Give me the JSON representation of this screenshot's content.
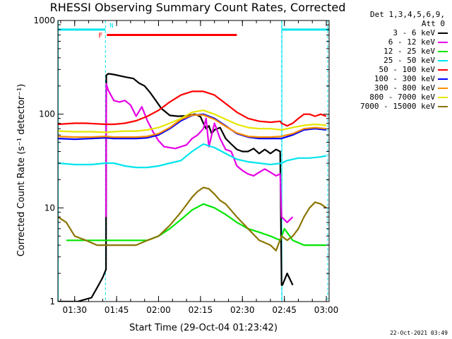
{
  "chart_data": {
    "type": "line",
    "title": "RHESSI Observing Summary Count Rates, Corrected",
    "xlabel": "Start Time (29-Oct-04 01:23:42)",
    "ylabel": "Corrected Count Rate (s⁻¹ detector⁻¹)",
    "x_unit": "minutes from 01:23:42",
    "xlim": [
      0,
      97
    ],
    "ylim": [
      1,
      1000
    ],
    "yscale": "log",
    "x_ticks": [
      {
        "x": 6,
        "label": "01:30"
      },
      {
        "x": 21,
        "label": "01:45"
      },
      {
        "x": 36,
        "label": "02:00"
      },
      {
        "x": 51,
        "label": "02:15"
      },
      {
        "x": 66,
        "label": "02:30"
      },
      {
        "x": 81,
        "label": "02:45"
      },
      {
        "x": 96,
        "label": "03:00"
      }
    ],
    "y_ticks": [
      {
        "y": 1,
        "label": "1"
      },
      {
        "y": 10,
        "label": "10"
      },
      {
        "y": 100,
        "label": "100"
      },
      {
        "y": 1000,
        "label": "1000"
      }
    ],
    "legend_header": [
      "Det 1,3,4,5,6,9,",
      "Att 0"
    ],
    "legend_position": "right",
    "annotations": [
      {
        "text": "F",
        "color": "#ff0000"
      },
      {
        "text": "N",
        "color": "#00e5ee"
      }
    ],
    "night_intervals": [
      [
        0,
        17
      ],
      [
        80,
        97
      ]
    ],
    "flare_interval": [
      17.5,
      64
    ],
    "night_bar_level": 800,
    "flare_bar_level": 700,
    "night_boundaries": [
      17,
      80,
      96.5
    ],
    "timestamp": "22-Oct-2021 03:49",
    "series": [
      {
        "name": "3 - 6 keV",
        "color": "#000000",
        "x": [
          0,
          7,
          12,
          14,
          16,
          17.2,
          17.3,
          18,
          20,
          24,
          27,
          29,
          31,
          33,
          35,
          37,
          40,
          43,
          46,
          49,
          51,
          52,
          53,
          54,
          55,
          56,
          58,
          60,
          62,
          64,
          66,
          68,
          70,
          72,
          74,
          76,
          78,
          79.5,
          80,
          80.3,
          82,
          84
        ],
        "y": [
          1,
          1,
          1.1,
          1.4,
          1.8,
          2.2,
          260,
          270,
          265,
          250,
          240,
          215,
          200,
          170,
          140,
          115,
          97,
          95,
          96,
          100,
          94,
          80,
          70,
          75,
          62,
          68,
          72,
          55,
          48,
          42,
          40,
          40,
          43,
          38,
          42,
          38,
          42,
          40,
          1.5,
          1.5,
          2,
          1.5
        ]
      },
      {
        "name": "6 - 12 keV",
        "color": "#e600e6",
        "x": [
          17.2,
          17.3,
          18,
          20,
          22,
          24,
          26,
          28,
          30,
          32,
          34,
          36,
          38,
          40,
          42,
          44,
          46,
          48,
          50,
          52,
          53,
          54,
          56,
          58,
          60,
          62,
          64,
          66,
          68,
          70,
          72,
          74,
          76,
          78,
          79.5,
          80,
          82,
          84
        ],
        "y": [
          8,
          210,
          180,
          140,
          135,
          140,
          125,
          95,
          120,
          85,
          65,
          52,
          45,
          44,
          43,
          45,
          47,
          55,
          60,
          70,
          90,
          45,
          80,
          55,
          42,
          40,
          28,
          25,
          23,
          22,
          24,
          26,
          24,
          22,
          23,
          8,
          7,
          8
        ]
      },
      {
        "name": "12 - 25 keV",
        "color": "#00e600",
        "x": [
          3,
          10,
          17,
          20,
          24,
          28,
          32,
          36,
          40,
          44,
          48,
          52,
          56,
          60,
          64,
          68,
          72,
          76,
          79.5,
          81,
          84,
          88,
          92,
          96
        ],
        "y": [
          4.5,
          4.5,
          4.5,
          4.5,
          4.5,
          4.5,
          4.5,
          5,
          6,
          7.5,
          9.5,
          11,
          10,
          8.5,
          7,
          6,
          5.5,
          5,
          4.5,
          6,
          4.5,
          4,
          4,
          4
        ]
      },
      {
        "name": "25 - 50 keV",
        "color": "#00e5ee",
        "x": [
          0,
          6,
          12,
          17,
          20,
          24,
          28,
          32,
          36,
          40,
          44,
          48,
          52,
          56,
          60,
          64,
          68,
          72,
          76,
          80,
          82,
          86,
          90,
          94,
          96
        ],
        "y": [
          30,
          29,
          29,
          30,
          30,
          28,
          27,
          27,
          28,
          30,
          32,
          40,
          48,
          44,
          38,
          33,
          31,
          30,
          29,
          30,
          32,
          34,
          34,
          35,
          36
        ]
      },
      {
        "name": "50 - 100 keV",
        "color": "#ff0000",
        "x": [
          0,
          6,
          10,
          17,
          20,
          24,
          28,
          32,
          36,
          40,
          44,
          48,
          52,
          56,
          60,
          64,
          68,
          72,
          76,
          79.5,
          80,
          82,
          84,
          86,
          88,
          90,
          92,
          94,
          96
        ],
        "y": [
          78,
          80,
          80,
          78,
          78,
          80,
          85,
          95,
          110,
          135,
          160,
          175,
          175,
          160,
          130,
          105,
          90,
          84,
          82,
          84,
          80,
          75,
          80,
          90,
          100,
          100,
          95,
          100,
          95
        ]
      },
      {
        "name": "100 - 300 keV",
        "color": "#0000ff",
        "x": [
          0,
          6,
          12,
          17,
          20,
          24,
          28,
          32,
          36,
          40,
          44,
          48,
          52,
          56,
          60,
          64,
          68,
          72,
          76,
          80,
          84,
          88,
          92,
          96
        ],
        "y": [
          55,
          54,
          55,
          56,
          55,
          55,
          55,
          56,
          60,
          70,
          85,
          97,
          100,
          90,
          75,
          62,
          57,
          55,
          55,
          55,
          60,
          68,
          70,
          68
        ]
      },
      {
        "name": "300 - 800 keV",
        "color": "#ff8c00",
        "x": [
          0,
          6,
          12,
          17,
          20,
          24,
          28,
          32,
          36,
          40,
          44,
          48,
          52,
          56,
          60,
          64,
          68,
          72,
          76,
          80,
          84,
          88,
          92,
          96
        ],
        "y": [
          58,
          57,
          57,
          58,
          57,
          57,
          57,
          58,
          62,
          72,
          88,
          98,
          98,
          88,
          74,
          63,
          58,
          57,
          57,
          58,
          62,
          70,
          72,
          70
        ]
      },
      {
        "name": "800 - 7000 keV",
        "color": "#e6e600",
        "x": [
          0,
          6,
          12,
          17,
          20,
          24,
          28,
          32,
          36,
          40,
          44,
          48,
          52,
          56,
          60,
          64,
          68,
          72,
          76,
          80,
          84,
          88,
          92,
          96
        ],
        "y": [
          66,
          65,
          65,
          64,
          65,
          66,
          66,
          68,
          72,
          80,
          90,
          105,
          110,
          100,
          88,
          78,
          72,
          70,
          70,
          68,
          72,
          76,
          78,
          76
        ]
      },
      {
        "name": "7000 - 15000 keV",
        "color": "#8b7500",
        "x": [
          0,
          3,
          6,
          10,
          14,
          17,
          20,
          24,
          28,
          32,
          36,
          40,
          44,
          48,
          50,
          52,
          54,
          56,
          58,
          60,
          64,
          68,
          72,
          76,
          78,
          80,
          82,
          84,
          86,
          88,
          90,
          92,
          94,
          96
        ],
        "y": [
          8,
          7,
          5,
          4.5,
          4,
          4,
          4,
          4,
          4,
          4.5,
          5,
          6.5,
          9,
          13,
          15,
          16.5,
          16,
          14,
          12,
          11,
          8,
          6,
          4.5,
          4,
          3.5,
          5,
          4.5,
          5,
          6,
          8,
          10,
          11.5,
          11,
          10
        ]
      }
    ]
  }
}
